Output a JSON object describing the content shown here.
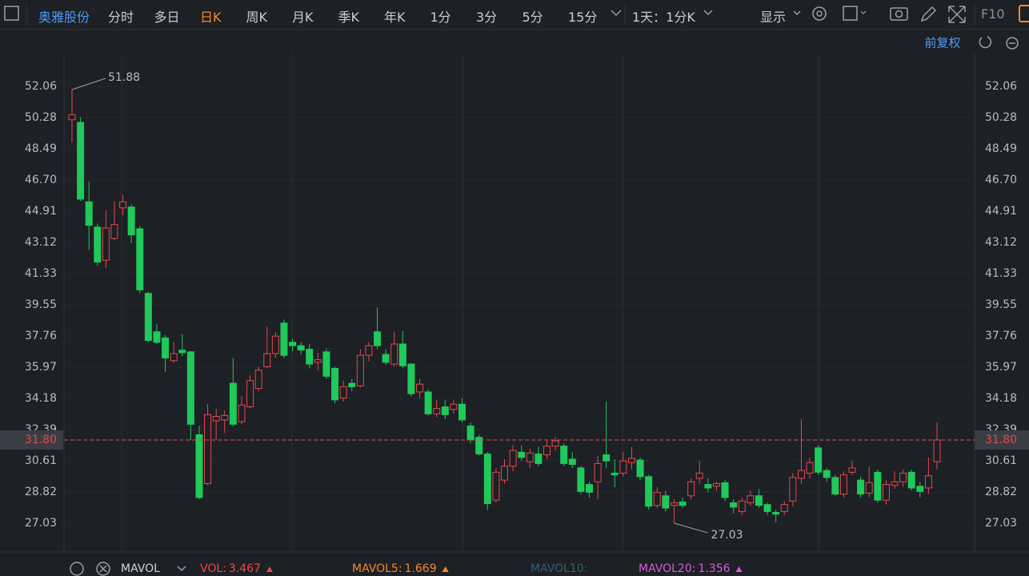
{
  "toolbar": {
    "stock": "奥雅股份",
    "periods": [
      "分时",
      "多日",
      "日K",
      "周K",
      "月K",
      "季K",
      "年K",
      "1分",
      "3分",
      "5分",
      "15分"
    ],
    "range": "1天：1分K",
    "display": "显示",
    "f10": "F10"
  },
  "adjust": "前复权",
  "chart_data": {
    "type": "candlestick",
    "open": [
      50.15,
      50.0,
      45.45,
      44.0,
      42.1,
      43.35,
      45.1,
      45.15,
      43.9,
      40.2,
      38.0,
      37.65,
      36.35,
      36.95,
      36.85,
      32.1,
      29.3,
      32.9,
      32.95,
      35.05,
      32.85,
      33.7,
      34.75,
      36.0,
      36.75,
      38.5,
      37.4,
      37.2,
      37.0,
      36.25,
      36.85,
      35.9,
      34.2,
      35.05,
      34.9,
      36.65,
      38.0,
      36.7,
      36.15,
      37.3,
      36.15,
      34.55,
      34.55,
      33.3,
      33.7,
      33.55,
      33.85,
      32.6,
      31.95,
      31.0,
      28.35,
      29.5,
      30.3,
      31.1,
      30.55,
      31.0,
      30.95,
      31.45,
      31.45,
      30.7,
      30.2,
      29.25,
      29.4,
      30.95,
      29.9,
      29.9,
      30.5,
      30.65,
      29.7,
      28.05,
      28.6,
      28.05,
      28.25,
      28.6,
      29.6,
      29.25,
      29.15,
      29.35,
      28.2,
      27.7,
      28.2,
      28.6,
      28.1,
      27.65,
      27.7,
      28.3,
      29.6,
      29.9,
      31.35,
      30.05,
      29.65,
      28.7,
      29.95,
      29.5,
      28.75,
      29.95,
      28.35,
      29.2,
      29.4,
      29.95,
      29.15,
      29.05,
      30.55
    ],
    "high": [
      51.88,
      50.3,
      46.6,
      44.2,
      44.95,
      45.5,
      45.85,
      45.3,
      44.05,
      40.3,
      38.45,
      37.8,
      37.4,
      37.85,
      36.9,
      32.6,
      33.85,
      33.6,
      33.5,
      36.5,
      34.3,
      35.5,
      36.0,
      38.3,
      38.0,
      38.7,
      37.6,
      37.4,
      37.3,
      36.8,
      37.05,
      36.0,
      35.2,
      35.3,
      37.0,
      37.4,
      39.4,
      37.0,
      38.0,
      38.05,
      36.2,
      35.3,
      34.7,
      34.1,
      34.1,
      34.1,
      34.2,
      32.8,
      32.1,
      31.1,
      30.2,
      30.7,
      31.5,
      31.5,
      31.3,
      31.4,
      31.8,
      32.0,
      31.6,
      31.1,
      30.3,
      29.4,
      30.9,
      34.0,
      30.7,
      31.1,
      31.4,
      30.8,
      29.8,
      29.1,
      28.9,
      28.4,
      28.5,
      29.6,
      30.6,
      29.6,
      29.4,
      29.5,
      28.4,
      28.5,
      28.9,
      29.0,
      28.2,
      27.8,
      28.3,
      29.9,
      33.0,
      30.8,
      31.5,
      30.2,
      29.8,
      30.0,
      30.6,
      29.7,
      30.3,
      30.1,
      29.5,
      30.0,
      30.1,
      30.1,
      29.4,
      30.8,
      32.8
    ],
    "low": [
      48.85,
      45.5,
      42.7,
      41.8,
      41.65,
      43.25,
      44.65,
      43.1,
      40.2,
      37.4,
      37.3,
      35.7,
      36.2,
      36.6,
      31.8,
      28.4,
      29.2,
      31.8,
      32.2,
      32.6,
      32.7,
      33.6,
      34.6,
      35.9,
      36.5,
      36.5,
      36.9,
      36.7,
      35.9,
      35.8,
      35.3,
      33.9,
      34.0,
      34.6,
      34.8,
      36.3,
      37.0,
      36.1,
      36.0,
      35.9,
      34.3,
      34.2,
      33.2,
      33.1,
      33.0,
      33.3,
      32.8,
      31.6,
      30.9,
      27.8,
      28.2,
      29.3,
      30.0,
      30.6,
      30.2,
      30.3,
      30.7,
      31.2,
      30.3,
      30.2,
      28.7,
      28.5,
      28.4,
      30.2,
      29.1,
      29.7,
      30.1,
      29.5,
      27.8,
      27.9,
      27.7,
      27.03,
      27.9,
      28.4,
      29.3,
      28.8,
      28.9,
      28.3,
      27.6,
      27.5,
      28.0,
      27.9,
      27.5,
      27.1,
      27.5,
      28.0,
      29.3,
      29.6,
      29.8,
      29.4,
      28.6,
      28.5,
      29.8,
      28.5,
      28.5,
      28.2,
      28.1,
      29.0,
      29.1,
      28.9,
      28.5,
      28.7,
      30.1
    ],
    "close": [
      50.45,
      45.6,
      44.1,
      42.0,
      43.95,
      44.15,
      45.45,
      43.55,
      40.4,
      37.5,
      37.4,
      36.5,
      36.75,
      36.8,
      32.7,
      28.5,
      33.25,
      33.15,
      33.2,
      32.7,
      33.8,
      35.2,
      35.8,
      36.75,
      37.75,
      36.65,
      37.2,
      36.95,
      36.15,
      36.4,
      35.45,
      34.1,
      34.85,
      34.85,
      36.65,
      37.2,
      37.2,
      36.25,
      37.3,
      36.05,
      34.45,
      35.0,
      33.3,
      33.6,
      33.25,
      33.85,
      32.95,
      31.8,
      31.0,
      28.15,
      29.95,
      30.3,
      31.2,
      30.8,
      31.05,
      30.45,
      31.45,
      31.75,
      30.45,
      30.4,
      28.85,
      28.8,
      30.45,
      30.6,
      29.8,
      30.6,
      30.75,
      29.7,
      28.0,
      28.8,
      27.9,
      28.2,
      28.05,
      29.4,
      29.9,
      29.05,
      29.3,
      28.5,
      27.95,
      28.3,
      28.6,
      28.05,
      27.7,
      27.55,
      28.1,
      29.65,
      30.05,
      30.5,
      29.95,
      29.65,
      28.7,
      29.8,
      30.2,
      28.7,
      29.35,
      28.35,
      29.25,
      29.4,
      29.9,
      29.05,
      28.85,
      29.75,
      31.8
    ],
    "up_color": "#e8474d",
    "down_color": "#1fc95a",
    "ylim": [
      25.38,
      55.18
    ],
    "yticks": [
      {
        "value": 27.03,
        "label": "27.03"
      },
      28.82,
      30.61,
      32.39,
      34.18,
      35.97,
      37.76,
      39.55,
      41.33,
      43.12,
      44.91,
      {
        "value": 46.7,
        "label": "46.70"
      },
      48.49,
      50.28,
      52.06
    ],
    "last_price": {
      "value": 31.8,
      "label": "31.80"
    },
    "grid": true
  },
  "indicator": {
    "name": "MAVOL",
    "items": [
      {
        "label": "VOL:",
        "value": 3.467,
        "color": "#e8474d"
      },
      {
        "label": "MAVOL5:",
        "value": 1.669,
        "color": "#f08a2c"
      },
      {
        "label": "MAVOL10:",
        "color": "#2f6272"
      },
      {
        "label": "MAVOL20:",
        "value": 1.356,
        "color": "#d35cd8"
      }
    ]
  }
}
